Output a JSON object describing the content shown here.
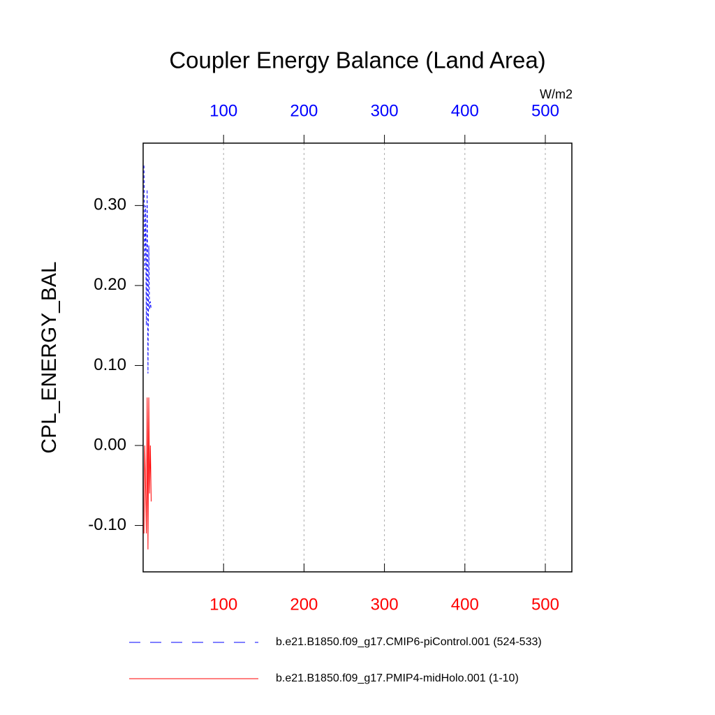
{
  "chart_data": {
    "type": "line",
    "title": "Coupler Energy Balance (Land Area)",
    "y_label": "CPL_ENERGY_BAL",
    "units": "W/m2",
    "x": [
      1,
      2,
      3,
      4,
      5,
      6,
      7,
      8,
      9,
      10
    ],
    "series": [
      {
        "name": "b.e21.B1850.f09_g17.CMIP6-piControl.001 (524-533)",
        "color": "#0000ff",
        "dash": true,
        "values": [
          0.35,
          0.22,
          0.3,
          0.15,
          0.32,
          0.09,
          0.25,
          0.17,
          0.18,
          0.17
        ]
      },
      {
        "name": "b.e21.B1850.f09_g17.PMIP4-midHolo.001 (1-10)",
        "color": "#ff0000",
        "dash": false,
        "values": [
          -0.11,
          0.0,
          -0.05,
          -0.11,
          0.06,
          -0.13,
          0.06,
          -0.06,
          0.0,
          -0.07
        ]
      }
    ],
    "xlim": [
      0,
      533
    ],
    "xticks": [
      100,
      200,
      300,
      400,
      500
    ],
    "x2ticks": [
      100,
      200,
      300,
      400,
      500
    ],
    "ylim": [
      -0.158,
      0.378
    ],
    "yticks": [
      {
        "value": 0.3,
        "label": "0.30"
      },
      {
        "value": 0.2,
        "label": "0.20"
      },
      {
        "value": 0.1,
        "label": "0.10"
      },
      {
        "value": 0,
        "label": "0.00"
      },
      {
        "value": -0.1,
        "label": "-0.10"
      }
    ],
    "grid": true
  }
}
